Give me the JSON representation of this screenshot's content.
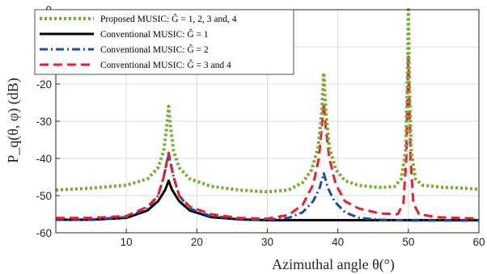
{
  "chart_data": {
    "type": "line",
    "xlabel": "Azimuthal angle θ(°)",
    "ylabel": "P_q(θ, φ) (dB)",
    "xlim": [
      0,
      60
    ],
    "ylim": [
      -60,
      0
    ],
    "xticks": [
      "10",
      "20",
      "30",
      "40",
      "50",
      "60"
    ],
    "yticks": [
      "0",
      "-10",
      "-20",
      "-30",
      "-40",
      "-50",
      "-60"
    ],
    "grid": true,
    "legend_position": "top-left",
    "series": [
      {
        "name": "Proposed MUSIC: Ĝ = 1, 2, 3 and, 4",
        "color": "#77ac30",
        "style": "dotted",
        "points": [
          [
            0,
            -48.5
          ],
          [
            5,
            -48
          ],
          [
            10,
            -47.2
          ],
          [
            13,
            -45.5
          ],
          [
            14.5,
            -42.5
          ],
          [
            15.3,
            -38
          ],
          [
            15.7,
            -32
          ],
          [
            16,
            -26
          ],
          [
            16.3,
            -32
          ],
          [
            16.7,
            -38
          ],
          [
            17.5,
            -42.5
          ],
          [
            19,
            -45.5
          ],
          [
            22,
            -47.5
          ],
          [
            26,
            -48.5
          ],
          [
            30,
            -49
          ],
          [
            33,
            -48.5
          ],
          [
            35,
            -46.5
          ],
          [
            36.3,
            -43
          ],
          [
            37.2,
            -37
          ],
          [
            37.7,
            -28
          ],
          [
            38,
            -17
          ],
          [
            38.3,
            -28
          ],
          [
            38.8,
            -37
          ],
          [
            39.7,
            -43
          ],
          [
            41,
            -46
          ],
          [
            43,
            -47.3
          ],
          [
            46,
            -47.8
          ],
          [
            48,
            -47.6
          ],
          [
            49,
            -45.5
          ],
          [
            49.6,
            -38
          ],
          [
            49.85,
            -20
          ],
          [
            50,
            0
          ],
          [
            50.15,
            -20
          ],
          [
            50.4,
            -38
          ],
          [
            51,
            -45.5
          ],
          [
            52,
            -47.2
          ],
          [
            55,
            -47.8
          ],
          [
            58,
            -48
          ],
          [
            60,
            -48.3
          ]
        ]
      },
      {
        "name": "Conventional MUSIC: Ĝ = 1",
        "color": "#000000",
        "style": "solid",
        "points": [
          [
            0,
            -56.5
          ],
          [
            5,
            -56.5
          ],
          [
            10,
            -56
          ],
          [
            13,
            -54
          ],
          [
            14.5,
            -51.5
          ],
          [
            15.5,
            -48.5
          ],
          [
            16,
            -46
          ],
          [
            16.5,
            -48.5
          ],
          [
            17.5,
            -51.5
          ],
          [
            19,
            -54
          ],
          [
            22,
            -55.8
          ],
          [
            26,
            -56.4
          ],
          [
            30,
            -56.6
          ],
          [
            40,
            -56.6
          ],
          [
            50,
            -56.6
          ],
          [
            60,
            -56.6
          ]
        ]
      },
      {
        "name": "Conventional MUSIC: Ĝ = 2",
        "color": "#1f4aa8",
        "style": "dashdot",
        "points": [
          [
            0,
            -56.5
          ],
          [
            5,
            -56.4
          ],
          [
            10,
            -55.8
          ],
          [
            13,
            -53.5
          ],
          [
            14.5,
            -50
          ],
          [
            15.3,
            -45
          ],
          [
            16,
            -39
          ],
          [
            16.7,
            -45
          ],
          [
            17.5,
            -50
          ],
          [
            19,
            -53.5
          ],
          [
            22,
            -55.5
          ],
          [
            26,
            -56.3
          ],
          [
            30,
            -56.5
          ],
          [
            33,
            -56
          ],
          [
            35,
            -54.5
          ],
          [
            36.5,
            -51.5
          ],
          [
            37.4,
            -48
          ],
          [
            38,
            -44
          ],
          [
            38.6,
            -48
          ],
          [
            39.5,
            -51.5
          ],
          [
            41,
            -54.5
          ],
          [
            43,
            -56
          ],
          [
            46,
            -56.5
          ],
          [
            50,
            -56.7
          ],
          [
            55,
            -56.7
          ],
          [
            60,
            -56.7
          ]
        ]
      },
      {
        "name": "Conventional MUSIC: Ĝ = 3 and 4",
        "color": "#e8202a",
        "style": "dashed",
        "points": [
          [
            0,
            -56
          ],
          [
            5,
            -56
          ],
          [
            10,
            -55.5
          ],
          [
            13,
            -53
          ],
          [
            14.5,
            -50
          ],
          [
            15.3,
            -45
          ],
          [
            16,
            -38.5
          ],
          [
            16.7,
            -45
          ],
          [
            17.5,
            -50
          ],
          [
            19,
            -53
          ],
          [
            22,
            -55
          ],
          [
            26,
            -56
          ],
          [
            30,
            -56.2
          ],
          [
            33,
            -55.2
          ],
          [
            35,
            -52.5
          ],
          [
            36.5,
            -47
          ],
          [
            37.3,
            -40
          ],
          [
            37.7,
            -32
          ],
          [
            38,
            -25
          ],
          [
            38.3,
            -32
          ],
          [
            38.8,
            -40
          ],
          [
            39.7,
            -47
          ],
          [
            41,
            -51.5
          ],
          [
            43,
            -53.5
          ],
          [
            46,
            -54.8
          ],
          [
            48.5,
            -55
          ],
          [
            49.3,
            -52
          ],
          [
            49.7,
            -40
          ],
          [
            50,
            -12
          ],
          [
            50.3,
            -40
          ],
          [
            50.7,
            -52
          ],
          [
            51.5,
            -55
          ],
          [
            54,
            -55.8
          ],
          [
            57,
            -56
          ],
          [
            60,
            -56.2
          ]
        ]
      }
    ]
  }
}
